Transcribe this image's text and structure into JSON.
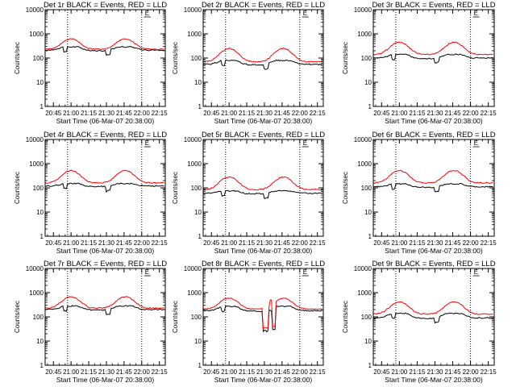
{
  "chart_data": [
    {
      "type": "line",
      "title": "Det 1r BLACK = Events, RED = LLD",
      "xlabel": "Start Time (06-Mar-07 20:38:00)",
      "ylabel": "Counts/sec",
      "yscale": "log",
      "ylim": [
        1,
        10000
      ],
      "xlim": [
        "20:38",
        "22:20"
      ],
      "x_ticks": [
        "20:45",
        "21:00",
        "21:15",
        "21:30",
        "21:45",
        "22:00",
        "22:15"
      ],
      "y_ticks": [
        "1",
        "10",
        "100",
        "1000",
        "10000"
      ],
      "vlines": [
        "20:57",
        "22:00"
      ],
      "events_baseline": 210,
      "events_peak": 290,
      "lld_baseline": 230,
      "lld_peak": 620,
      "marker_label": "E",
      "series": []
    },
    {
      "type": "line",
      "title": "Det 2r BLACK = Events, RED = LLD",
      "xlabel": "Start Time (06-Mar-07 20:38:00)",
      "ylabel": "Counts/sec",
      "yscale": "log",
      "ylim": [
        1,
        10000
      ],
      "xlim": [
        "20:38",
        "22:20"
      ],
      "x_ticks": [
        "20:45",
        "21:00",
        "21:15",
        "21:30",
        "21:45",
        "22:00",
        "22:15"
      ],
      "y_ticks": [
        "1",
        "10",
        "100",
        "1000",
        "10000"
      ],
      "vlines": [
        "20:57",
        "22:00"
      ],
      "events_baseline": 55,
      "events_peak": 80,
      "lld_baseline": 70,
      "lld_peak": 250,
      "marker_label": "E",
      "series": []
    },
    {
      "type": "line",
      "title": "Det 3r BLACK = Events, RED = LLD",
      "xlabel": "Start Time (06-Mar-07 20:38:00)",
      "ylabel": "Counts/sec",
      "yscale": "log",
      "ylim": [
        1,
        10000
      ],
      "xlim": [
        "20:38",
        "22:20"
      ],
      "x_ticks": [
        "20:45",
        "21:00",
        "21:15",
        "21:30",
        "21:45",
        "22:00",
        "22:15"
      ],
      "y_ticks": [
        "1",
        "10",
        "100",
        "1000",
        "10000"
      ],
      "vlines": [
        "20:57",
        "22:00"
      ],
      "events_baseline": 100,
      "events_peak": 140,
      "lld_baseline": 140,
      "lld_peak": 450,
      "marker_label": "E",
      "series": []
    },
    {
      "type": "line",
      "title": "Det 4r BLACK = Events, RED = LLD",
      "xlabel": "Start Time (06-Mar-07 20:38:00)",
      "ylabel": "Counts/sec",
      "yscale": "log",
      "ylim": [
        1,
        10000
      ],
      "xlim": [
        "20:38",
        "22:20"
      ],
      "x_ticks": [
        "20:45",
        "21:00",
        "21:15",
        "21:30",
        "21:45",
        "22:00",
        "22:15"
      ],
      "y_ticks": [
        "1",
        "10",
        "100",
        "1000",
        "10000"
      ],
      "vlines": [
        "20:57",
        "22:00"
      ],
      "events_baseline": 120,
      "events_peak": 150,
      "lld_baseline": 160,
      "lld_peak": 520,
      "marker_label": "E",
      "series": []
    },
    {
      "type": "line",
      "title": "Det 5r BLACK = Events, RED = LLD",
      "xlabel": "Start Time (06-Mar-07 20:38:00)",
      "ylabel": "Counts/sec",
      "yscale": "log",
      "ylim": [
        1,
        10000
      ],
      "xlim": [
        "20:38",
        "22:20"
      ],
      "x_ticks": [
        "20:45",
        "21:00",
        "21:15",
        "21:30",
        "21:45",
        "22:00",
        "22:15"
      ],
      "y_ticks": [
        "1",
        "10",
        "100",
        "1000",
        "10000"
      ],
      "vlines": [
        "20:57",
        "22:00"
      ],
      "events_baseline": 60,
      "events_peak": 75,
      "lld_baseline": 85,
      "lld_peak": 280,
      "marker_label": "E",
      "series": []
    },
    {
      "type": "line",
      "title": "Det 6r BLACK = Events, RED = LLD",
      "xlabel": "Start Time (06-Mar-07 20:38:00)",
      "ylabel": "Counts/sec",
      "yscale": "log",
      "ylim": [
        1,
        10000
      ],
      "xlim": [
        "20:38",
        "22:20"
      ],
      "x_ticks": [
        "20:45",
        "21:00",
        "21:15",
        "21:30",
        "21:45",
        "22:00",
        "22:15"
      ],
      "y_ticks": [
        "1",
        "10",
        "100",
        "1000",
        "10000"
      ],
      "vlines": [
        "20:57",
        "22:00"
      ],
      "events_baseline": 110,
      "events_peak": 145,
      "lld_baseline": 160,
      "lld_peak": 520,
      "marker_label": "E",
      "series": []
    },
    {
      "type": "line",
      "title": "Det 7r BLACK = Events, RED = LLD",
      "xlabel": "Start Time (06-Mar-07 20:38:00)",
      "ylabel": "Counts/sec",
      "yscale": "log",
      "ylim": [
        1,
        10000
      ],
      "xlim": [
        "20:38",
        "22:20"
      ],
      "x_ticks": [
        "20:45",
        "21:00",
        "21:15",
        "21:30",
        "21:45",
        "22:00",
        "22:15"
      ],
      "y_ticks": [
        "1",
        "10",
        "100",
        "1000",
        "10000"
      ],
      "vlines": [
        "20:57",
        "22:00"
      ],
      "events_baseline": 200,
      "events_peak": 280,
      "lld_baseline": 230,
      "lld_peak": 680,
      "marker_label": "E",
      "series": []
    },
    {
      "type": "line",
      "title": "Det 8r BLACK = Events, RED = LLD",
      "xlabel": "Start Time (06-Mar-07 20:38:00)",
      "ylabel": "Counts/sec",
      "yscale": "log",
      "ylim": [
        1,
        10000
      ],
      "xlim": [
        "20:38",
        "22:20"
      ],
      "x_ticks": [
        "20:45",
        "21:00",
        "21:15",
        "21:30",
        "21:45",
        "22:00",
        "22:15"
      ],
      "y_ticks": [
        "1",
        "10",
        "100",
        "1000",
        "10000"
      ],
      "vlines": [
        "20:57",
        "22:00"
      ],
      "events_baseline": 180,
      "events_peak": 270,
      "lld_baseline": 210,
      "lld_peak": 600,
      "marker_label": "E",
      "dropout": true,
      "series": []
    },
    {
      "type": "line",
      "title": "Det 9r BLACK = Events, RED = LLD",
      "xlabel": "Start Time (06-Mar-07 20:38:00)",
      "ylabel": "Counts/sec",
      "yscale": "log",
      "ylim": [
        1,
        10000
      ],
      "xlim": [
        "20:38",
        "22:20"
      ],
      "x_ticks": [
        "20:45",
        "21:00",
        "21:15",
        "21:30",
        "21:45",
        "22:00",
        "22:15"
      ],
      "y_ticks": [
        "1",
        "10",
        "100",
        "1000",
        "10000"
      ],
      "vlines": [
        "20:57",
        "22:00"
      ],
      "events_baseline": 90,
      "events_peak": 140,
      "lld_baseline": 130,
      "lld_peak": 420,
      "marker_label": "E",
      "series": []
    }
  ],
  "colors": {
    "events": "#000000",
    "lld": "#ff0000"
  }
}
